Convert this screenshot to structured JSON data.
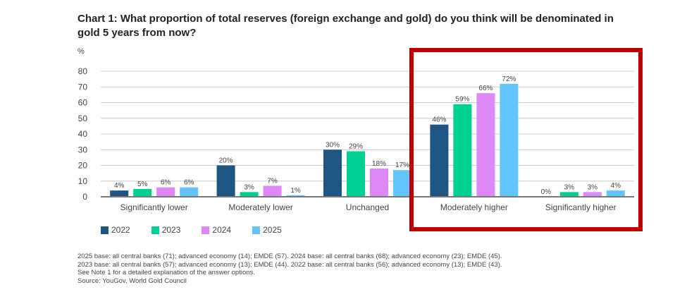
{
  "chart_data": {
    "type": "bar",
    "title": "Chart 1: What proportion of total reserves (foreign exchange and gold) do you think will be denominated in gold 5 years from now?",
    "ylabel": "%",
    "xlabel": "",
    "ylim": [
      0,
      80
    ],
    "yticks": [
      0,
      10,
      20,
      30,
      40,
      50,
      60,
      70,
      80
    ],
    "grid": true,
    "legend_position": "bottom-left",
    "categories": [
      "Significantly lower",
      "Moderately lower",
      "Unchanged",
      "Moderately higher",
      "Significantly higher"
    ],
    "series": [
      {
        "name": "2022",
        "color": "#1f5582",
        "values": [
          4,
          20,
          30,
          46,
          0
        ]
      },
      {
        "name": "2023",
        "color": "#00d091",
        "values": [
          5,
          3,
          29,
          59,
          3
        ]
      },
      {
        "name": "2024",
        "color": "#dd88f7",
        "values": [
          6,
          7,
          18,
          66,
          3
        ]
      },
      {
        "name": "2025",
        "color": "#62c4fb",
        "values": [
          6,
          1,
          17,
          72,
          4
        ]
      }
    ],
    "value_suffix": "%",
    "highlight": {
      "categories": [
        "Moderately higher",
        "Significantly higher"
      ],
      "color": "#c00000"
    }
  },
  "notes": [
    "2025 base: all central banks (71); advanced economy (14); EMDE (57). 2024 base: all central banks (68); advanced economy (23); EMDE (45).",
    "2023 base: all central banks (57); advanced economy (13); EMDE (44). 2022 base: all central banks (56); advanced economy (13); EMDE (43).",
    "See Note 1 for a detailed explanation of the answer options.",
    "Source: YouGov, World Gold Council"
  ]
}
